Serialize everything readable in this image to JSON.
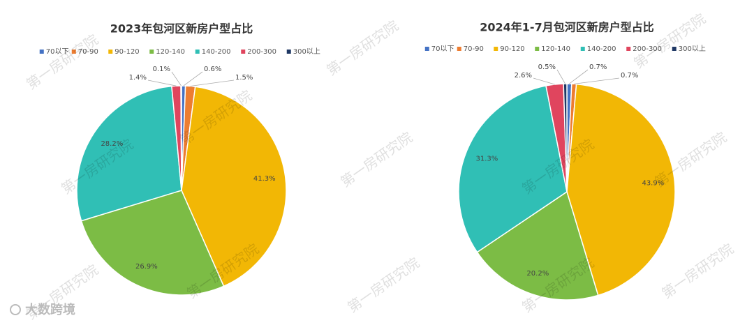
{
  "chart_data": [
    {
      "type": "pie",
      "title": "2023年包河区新房户型占比",
      "categories": [
        "70以下",
        "70-90",
        "90-120",
        "120-140",
        "140-200",
        "200-300",
        "300以上"
      ],
      "values": [
        0.6,
        1.5,
        41.3,
        26.9,
        28.2,
        1.4,
        0.1
      ],
      "value_labels": [
        "0.6%",
        "1.5%",
        "41.3%",
        "26.9%",
        "28.2%",
        "1.4%",
        "0.1%"
      ],
      "colors": [
        "#4472c4",
        "#ed7d31",
        "#f2b705",
        "#7cbc45",
        "#30bfb5",
        "#e0455e",
        "#1f3864"
      ]
    },
    {
      "type": "pie",
      "title": "2024年1-7月包河区新房户型占比",
      "categories": [
        "70以下",
        "70-90",
        "90-120",
        "120-140",
        "140-200",
        "200-300",
        "300以上"
      ],
      "values": [
        0.7,
        0.7,
        43.9,
        20.2,
        31.3,
        2.6,
        0.5
      ],
      "value_labels": [
        "0.7%",
        "0.7%",
        "43.9%",
        "20.2%",
        "31.3%",
        "2.6%",
        "0.5%"
      ],
      "colors": [
        "#4472c4",
        "#ed7d31",
        "#f2b705",
        "#7cbc45",
        "#30bfb5",
        "#e0455e",
        "#1f3864"
      ]
    }
  ],
  "watermark": "第一房研究院",
  "logo": "大数跨境"
}
